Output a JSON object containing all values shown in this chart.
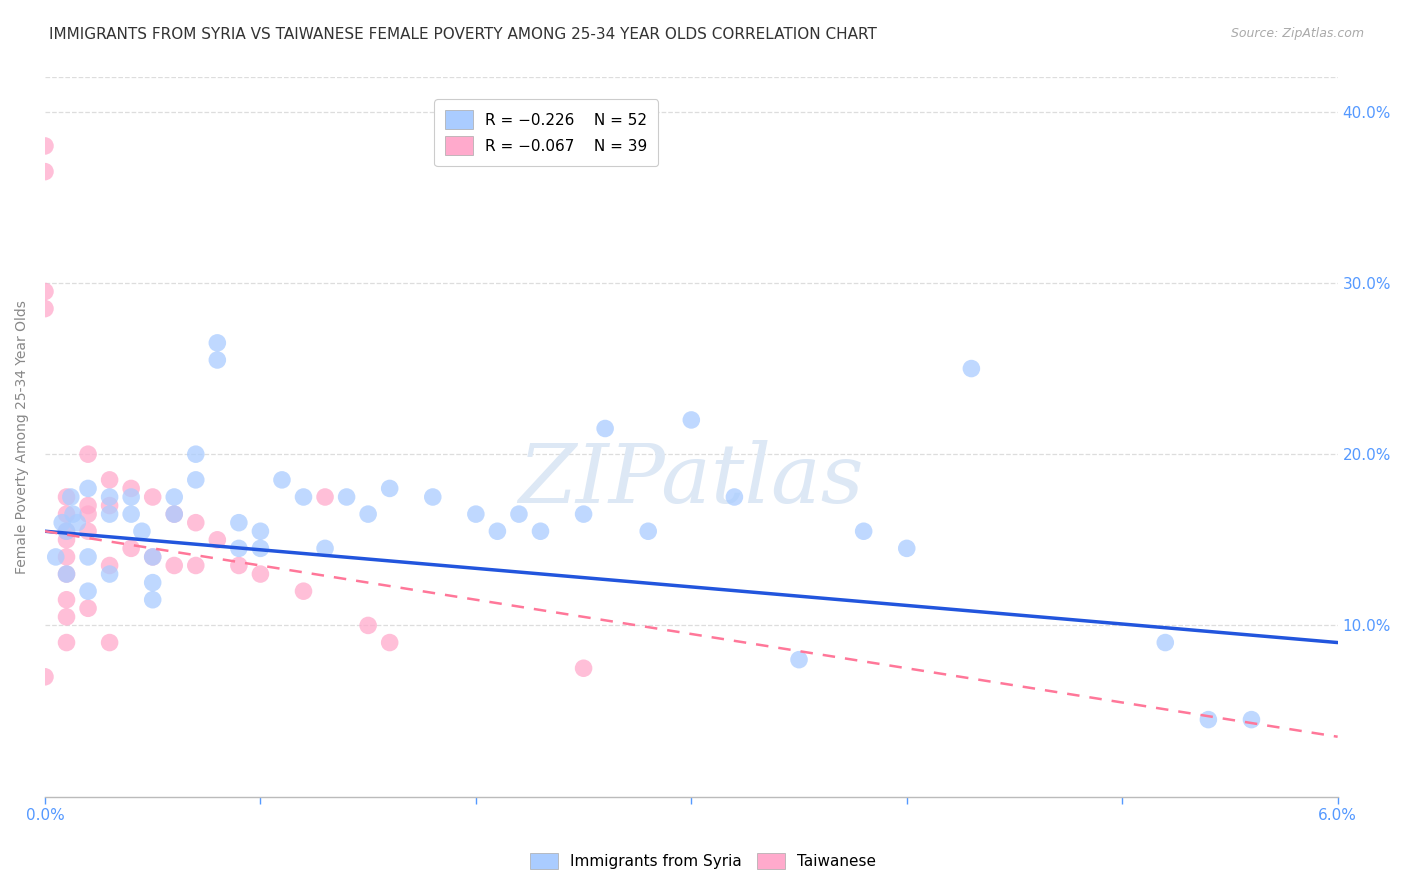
{
  "title": "IMMIGRANTS FROM SYRIA VS TAIWANESE FEMALE POVERTY AMONG 25-34 YEAR OLDS CORRELATION CHART",
  "source": "Source: ZipAtlas.com",
  "ylabel": "Female Poverty Among 25-34 Year Olds",
  "xlim": [
    0.0,
    0.06
  ],
  "ylim": [
    0.0,
    0.42
  ],
  "xticks": [
    0.0,
    0.01,
    0.02,
    0.03,
    0.04,
    0.05,
    0.06
  ],
  "xticklabels": [
    "0.0%",
    "",
    "",
    "",
    "",
    "",
    "6.0%"
  ],
  "yticks": [
    0.0,
    0.1,
    0.2,
    0.3,
    0.4
  ],
  "left_yticklabels": [
    "",
    "",
    "",
    "",
    ""
  ],
  "right_yticklabels": [
    "",
    "10.0%",
    "20.0%",
    "30.0%",
    "40.0%"
  ],
  "background_color": "#ffffff",
  "grid_color": "#dddddd",
  "title_color": "#333333",
  "axis_color": "#888888",
  "blue_color": "#5599ff",
  "syria_color": "#aaccff",
  "taiwan_color": "#ffaacc",
  "syria_line_color": "#2255dd",
  "taiwan_line_color": "#ff7799",
  "legend_R_syria": "R = −0.226",
  "legend_N_syria": "N = 52",
  "legend_R_taiwan": "R = −0.067",
  "legend_N_taiwan": "N = 39",
  "syria_scatter_x": [
    0.0005,
    0.0008,
    0.001,
    0.001,
    0.0012,
    0.0013,
    0.0015,
    0.002,
    0.002,
    0.002,
    0.003,
    0.003,
    0.003,
    0.004,
    0.004,
    0.0045,
    0.005,
    0.005,
    0.005,
    0.006,
    0.006,
    0.007,
    0.007,
    0.008,
    0.008,
    0.009,
    0.009,
    0.01,
    0.01,
    0.011,
    0.012,
    0.013,
    0.014,
    0.015,
    0.016,
    0.018,
    0.02,
    0.021,
    0.022,
    0.023,
    0.025,
    0.026,
    0.028,
    0.03,
    0.032,
    0.035,
    0.038,
    0.04,
    0.043,
    0.052,
    0.054,
    0.056
  ],
  "syria_scatter_y": [
    0.14,
    0.16,
    0.155,
    0.13,
    0.175,
    0.165,
    0.16,
    0.18,
    0.14,
    0.12,
    0.175,
    0.165,
    0.13,
    0.175,
    0.165,
    0.155,
    0.14,
    0.125,
    0.115,
    0.175,
    0.165,
    0.2,
    0.185,
    0.265,
    0.255,
    0.16,
    0.145,
    0.155,
    0.145,
    0.185,
    0.175,
    0.145,
    0.175,
    0.165,
    0.18,
    0.175,
    0.165,
    0.155,
    0.165,
    0.155,
    0.165,
    0.215,
    0.155,
    0.22,
    0.175,
    0.08,
    0.155,
    0.145,
    0.25,
    0.09,
    0.045,
    0.045
  ],
  "taiwan_scatter_x": [
    0.0,
    0.0,
    0.0,
    0.0,
    0.0,
    0.001,
    0.001,
    0.001,
    0.001,
    0.001,
    0.001,
    0.001,
    0.001,
    0.001,
    0.002,
    0.002,
    0.002,
    0.002,
    0.002,
    0.003,
    0.003,
    0.003,
    0.003,
    0.004,
    0.004,
    0.005,
    0.005,
    0.006,
    0.006,
    0.007,
    0.007,
    0.008,
    0.009,
    0.01,
    0.012,
    0.013,
    0.015,
    0.016,
    0.025
  ],
  "taiwan_scatter_y": [
    0.38,
    0.365,
    0.295,
    0.285,
    0.07,
    0.175,
    0.165,
    0.155,
    0.15,
    0.14,
    0.13,
    0.115,
    0.105,
    0.09,
    0.2,
    0.17,
    0.165,
    0.155,
    0.11,
    0.185,
    0.17,
    0.135,
    0.09,
    0.18,
    0.145,
    0.175,
    0.14,
    0.165,
    0.135,
    0.16,
    0.135,
    0.15,
    0.135,
    0.13,
    0.12,
    0.175,
    0.1,
    0.09,
    0.075
  ],
  "syria_trendline_x": [
    0.0,
    0.06
  ],
  "syria_trendline_y": [
    0.155,
    0.09
  ],
  "taiwan_trendline_x": [
    0.0,
    0.06
  ],
  "taiwan_trendline_y": [
    0.155,
    0.035
  ]
}
